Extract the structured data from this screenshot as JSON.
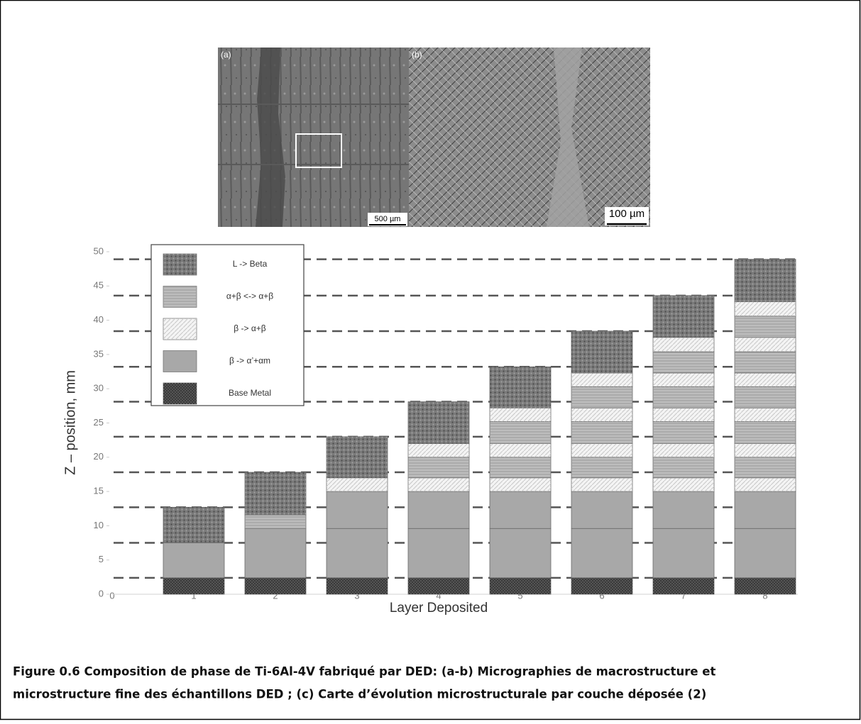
{
  "micrographs": {
    "a": {
      "label": "(a)",
      "scale": "500 µm"
    },
    "b": {
      "label": "(b)",
      "scale": "100 µm"
    }
  },
  "chart_data": {
    "type": "stacked_bar",
    "ylabel": "Z – position, mm",
    "xlabel": "Layer Deposited",
    "xlim": [
      0,
      8.4
    ],
    "xticks": [
      0,
      1,
      2,
      3,
      4,
      5,
      6,
      7,
      8
    ],
    "ylim": [
      0,
      50
    ],
    "yticks": [
      0,
      5,
      10,
      15,
      20,
      25,
      30,
      35,
      40,
      45,
      50
    ],
    "reference_lines": [
      2.4,
      7.5,
      12.7,
      17.8,
      23,
      28.1,
      33.2,
      38.4,
      43.6,
      48.9
    ],
    "series": [
      {
        "name": "L -> Beta",
        "color": "#7a7a7a",
        "pattern": "dots"
      },
      {
        "name": "α+β <-> α+β",
        "color": "#bdbdbd",
        "pattern": "lines"
      },
      {
        "name": "β -> α+β",
        "color": "#f4f4f4",
        "pattern": "hatch"
      },
      {
        "name": "β -> α’+αm",
        "color": "#a8a8a8",
        "pattern": "none"
      },
      {
        "name": "Base Metal",
        "color": "#555555",
        "pattern": "checks"
      }
    ],
    "bars": [
      {
        "x": 1,
        "segments": [
          {
            "series": 4,
            "value": 2.4
          },
          {
            "series": 3,
            "value": 5.1
          },
          {
            "series": 0,
            "value": 5.2
          }
        ]
      },
      {
        "x": 2,
        "segments": [
          {
            "series": 4,
            "value": 2.4
          },
          {
            "series": 3,
            "value": 7.2
          },
          {
            "series": 1,
            "value": 2
          },
          {
            "series": 0,
            "value": 6.2
          }
        ]
      },
      {
        "x": 3,
        "segments": [
          {
            "series": 4,
            "value": 2.4
          },
          {
            "series": 3,
            "value": 7.2
          },
          {
            "series": 3,
            "value": 5.4
          },
          {
            "series": 2,
            "value": 2
          },
          {
            "series": 0,
            "value": 6
          }
        ]
      },
      {
        "x": 4,
        "segments": [
          {
            "series": 4,
            "value": 2.4
          },
          {
            "series": 3,
            "value": 7.2
          },
          {
            "series": 3,
            "value": 5.4
          },
          {
            "series": 2,
            "value": 2
          },
          {
            "series": 1,
            "value": 3
          },
          {
            "series": 2,
            "value": 2
          },
          {
            "series": 0,
            "value": 6.1
          }
        ]
      },
      {
        "x": 5,
        "segments": [
          {
            "series": 4,
            "value": 2.4
          },
          {
            "series": 3,
            "value": 7.2
          },
          {
            "series": 3,
            "value": 5.4
          },
          {
            "series": 2,
            "value": 2
          },
          {
            "series": 1,
            "value": 3
          },
          {
            "series": 2,
            "value": 2
          },
          {
            "series": 1,
            "value": 3.2
          },
          {
            "series": 2,
            "value": 2
          },
          {
            "series": 0,
            "value": 6
          }
        ]
      },
      {
        "x": 6,
        "segments": [
          {
            "series": 4,
            "value": 2.4
          },
          {
            "series": 3,
            "value": 7.2
          },
          {
            "series": 3,
            "value": 5.4
          },
          {
            "series": 2,
            "value": 2
          },
          {
            "series": 1,
            "value": 3
          },
          {
            "series": 2,
            "value": 2
          },
          {
            "series": 1,
            "value": 3.2
          },
          {
            "series": 2,
            "value": 2
          },
          {
            "series": 1,
            "value": 3.1
          },
          {
            "series": 2,
            "value": 2
          },
          {
            "series": 0,
            "value": 6.1
          }
        ]
      },
      {
        "x": 7,
        "segments": [
          {
            "series": 4,
            "value": 2.4
          },
          {
            "series": 3,
            "value": 7.2
          },
          {
            "series": 3,
            "value": 5.4
          },
          {
            "series": 2,
            "value": 2
          },
          {
            "series": 1,
            "value": 3
          },
          {
            "series": 2,
            "value": 2
          },
          {
            "series": 1,
            "value": 3.2
          },
          {
            "series": 2,
            "value": 2
          },
          {
            "series": 1,
            "value": 3.1
          },
          {
            "series": 2,
            "value": 2
          },
          {
            "series": 1,
            "value": 3.1
          },
          {
            "series": 2,
            "value": 2.1
          },
          {
            "series": 0,
            "value": 6.1
          }
        ]
      },
      {
        "x": 8,
        "segments": [
          {
            "series": 4,
            "value": 2.4
          },
          {
            "series": 3,
            "value": 7.2
          },
          {
            "series": 3,
            "value": 5.4
          },
          {
            "series": 2,
            "value": 2
          },
          {
            "series": 1,
            "value": 3
          },
          {
            "series": 2,
            "value": 2
          },
          {
            "series": 1,
            "value": 3.2
          },
          {
            "series": 2,
            "value": 2
          },
          {
            "series": 1,
            "value": 3.1
          },
          {
            "series": 2,
            "value": 2
          },
          {
            "series": 1,
            "value": 3.1
          },
          {
            "series": 2,
            "value": 2.1
          },
          {
            "series": 1,
            "value": 3.1
          },
          {
            "series": 2,
            "value": 2.1
          },
          {
            "series": 0,
            "value": 6.2
          }
        ]
      }
    ]
  },
  "caption": [
    "Figure 0.6 Composition de phase de Ti-6Al-4V fabriqué par DED: (a-b) Micrographies de macrostructure et",
    "microstructure fine des échantillons DED ; (c) Carte d’évolution microstructurale par couche déposée (2)"
  ]
}
